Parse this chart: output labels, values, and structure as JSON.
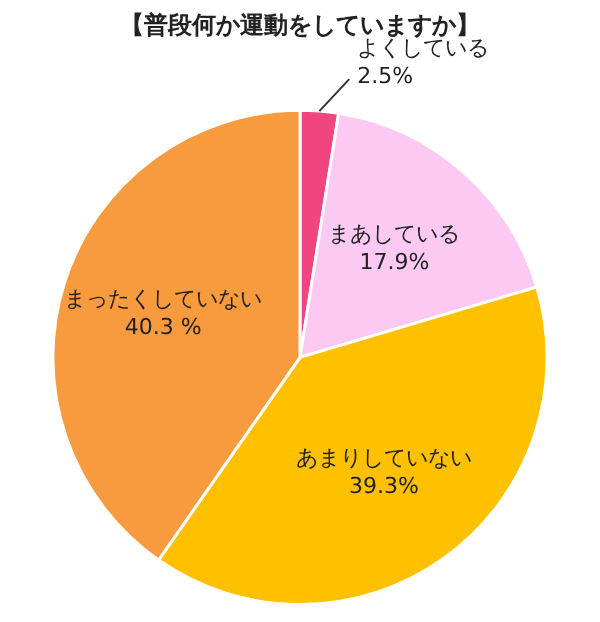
{
  "chart_data": {
    "type": "pie",
    "title": "【普段何か運動をしていますか】",
    "categories": [
      "よくしている",
      "まあしている",
      "あまりしていない",
      "まったくしていない"
    ],
    "values": [
      2.5,
      17.9,
      39.3,
      40.3
    ],
    "value_labels": [
      "2.5%",
      "17.9%",
      "39.3%",
      "40.3 %"
    ],
    "colors": [
      "#f0457e",
      "#fcc9f2",
      "#ffc000",
      "#f89a3e"
    ],
    "legend": false
  }
}
